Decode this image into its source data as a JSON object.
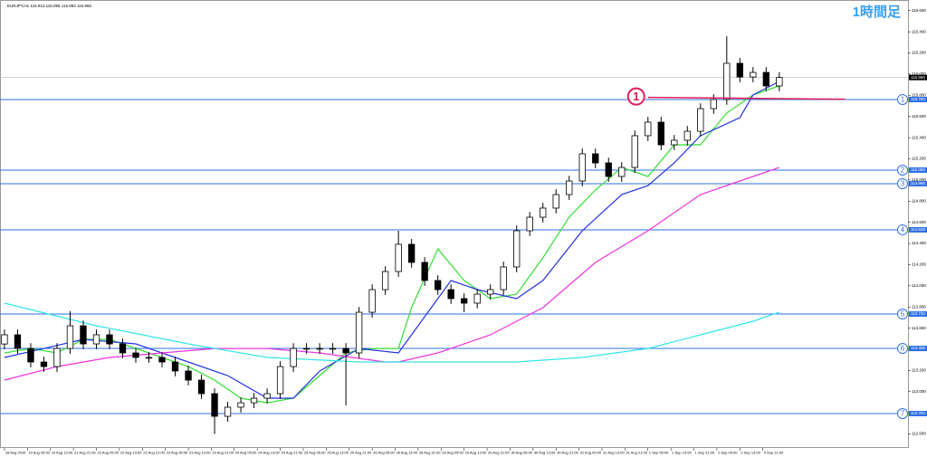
{
  "chart_data": {
    "type": "candlestick",
    "title": "EURJPY,H1 115.913 116.095 115.863 115.968",
    "timeframe_label": "1時間足",
    "xlim": [
      -0.34,
      68.8
    ],
    "ylim": [
      112.468,
      116.666
    ],
    "yticks": [
      {
        "value": 112.6,
        "label": "112.600"
      },
      {
        "value": 112.8,
        "label": "112.800"
      },
      {
        "value": 113.0,
        "label": "113.000"
      },
      {
        "value": 113.2,
        "label": "113.200"
      },
      {
        "value": 113.4,
        "label": "113.400"
      },
      {
        "value": 113.6,
        "label": "113.600"
      },
      {
        "value": 113.8,
        "label": "113.800"
      },
      {
        "value": 114.0,
        "label": "114.000"
      },
      {
        "value": 114.2,
        "label": "114.200"
      },
      {
        "value": 114.4,
        "label": "114.400"
      },
      {
        "value": 114.6,
        "label": "114.600"
      },
      {
        "value": 114.8,
        "label": "114.800"
      },
      {
        "value": 115.0,
        "label": "115.000"
      },
      {
        "value": 115.2,
        "label": "115.200"
      },
      {
        "value": 115.4,
        "label": "115.400"
      },
      {
        "value": 115.6,
        "label": "115.600"
      },
      {
        "value": 115.8,
        "label": "115.800"
      },
      {
        "value": 116.0,
        "label": "116.000"
      },
      {
        "value": 116.2,
        "label": "116.200"
      },
      {
        "value": 116.4,
        "label": "116.400"
      },
      {
        "value": 116.6,
        "label": "116.600"
      }
    ],
    "xticks": [
      {
        "value": 0,
        "label": "18 Aug 2016"
      },
      {
        "value": 1.75,
        "label": "19 Aug 05:00"
      },
      {
        "value": 3.5,
        "label": "19 Aug 13:00"
      },
      {
        "value": 5.25,
        "label": "21 Aug 21:00"
      },
      {
        "value": 7,
        "label": "22 Aug 05:00"
      },
      {
        "value": 8.75,
        "label": "22 Aug 13:00"
      },
      {
        "value": 10.5,
        "label": "22 Aug 21:00"
      },
      {
        "value": 12.25,
        "label": "23 Aug 05:00"
      },
      {
        "value": 14,
        "label": "23 Aug 13:00"
      },
      {
        "value": 15.75,
        "label": "23 Aug 21:00"
      },
      {
        "value": 17.5,
        "label": "24 Aug 05:00"
      },
      {
        "value": 19.25,
        "label": "24 Aug 13:00"
      },
      {
        "value": 21,
        "label": "24 Aug 21:00"
      },
      {
        "value": 22.75,
        "label": "25 Aug 05:00"
      },
      {
        "value": 24.5,
        "label": "25 Aug 13:00"
      },
      {
        "value": 26.25,
        "label": "25 Aug 21:00"
      },
      {
        "value": 28,
        "label": "26 Aug 05:00"
      },
      {
        "value": 29.75,
        "label": "26 Aug 13:00"
      },
      {
        "value": 31.5,
        "label": "26 Aug 21:00"
      },
      {
        "value": 33.25,
        "label": "29 Aug 05:00"
      },
      {
        "value": 35,
        "label": "29 Aug 13:00"
      },
      {
        "value": 36.75,
        "label": "29 Aug 21:00"
      },
      {
        "value": 38.5,
        "label": "30 Aug 05:00"
      },
      {
        "value": 40.25,
        "label": "30 Aug 13:00"
      },
      {
        "value": 42,
        "label": "30 Aug 21:00"
      },
      {
        "value": 43.75,
        "label": "31 Aug 05:00"
      },
      {
        "value": 45.5,
        "label": "31 Aug 13:00"
      },
      {
        "value": 47.25,
        "label": "31 Aug 21:00"
      },
      {
        "value": 49,
        "label": "1 Sep 05:00"
      },
      {
        "value": 50.75,
        "label": "1 Sep 13:00"
      },
      {
        "value": 52.5,
        "label": "1 Sep 21:00"
      },
      {
        "value": 54.25,
        "label": "2 Sep 05:00"
      },
      {
        "value": 56,
        "label": "2 Sep 13:00"
      },
      {
        "value": 57.75,
        "label": "4 Sep 21:00"
      }
    ],
    "x": [
      0,
      1,
      2,
      3,
      4,
      5,
      6,
      7,
      8,
      9,
      10,
      11,
      12,
      13,
      14,
      15,
      16,
      17,
      18,
      19,
      20,
      21,
      22,
      23,
      24,
      25,
      26,
      27,
      28,
      29,
      30,
      31,
      32,
      33,
      34,
      35,
      36,
      37,
      38,
      39,
      40,
      41,
      42,
      43,
      44,
      45,
      46,
      47,
      48,
      49,
      50,
      51,
      52,
      53,
      54,
      55,
      56,
      57,
      58,
      59
    ],
    "open": [
      113.45,
      113.537,
      113.408,
      113.28,
      113.237,
      113.408,
      113.622,
      113.451,
      113.537,
      113.451,
      113.366,
      113.323,
      113.323,
      113.28,
      113.195,
      113.109,
      112.981,
      112.767,
      112.853,
      112.895,
      112.938,
      112.981,
      113.237,
      113.408,
      113.408,
      113.408,
      113.408,
      113.366,
      113.75,
      113.964,
      114.135,
      114.392,
      114.221,
      114.05,
      113.964,
      113.879,
      113.836,
      113.921,
      113.964,
      114.178,
      114.52,
      114.648,
      114.734,
      114.862,
      114.99,
      115.247,
      115.161,
      115.033,
      115.118,
      115.418,
      115.546,
      115.332,
      115.375,
      115.46,
      115.674,
      115.76,
      116.102,
      115.973,
      116.016,
      115.888
    ],
    "high": [
      113.587,
      113.587,
      113.458,
      113.33,
      113.458,
      113.76,
      113.672,
      113.587,
      113.587,
      113.501,
      113.416,
      113.373,
      113.373,
      113.33,
      113.245,
      113.159,
      113.031,
      112.903,
      112.945,
      112.988,
      113.031,
      113.287,
      113.458,
      113.458,
      113.458,
      113.458,
      113.458,
      113.8,
      114.014,
      114.185,
      114.52,
      114.442,
      114.271,
      114.1,
      114.014,
      113.929,
      113.971,
      114.014,
      114.228,
      114.57,
      114.698,
      114.784,
      114.912,
      115.04,
      115.297,
      115.297,
      115.211,
      115.168,
      115.468,
      115.596,
      115.596,
      115.425,
      115.51,
      115.724,
      115.81,
      116.358,
      116.152,
      116.066,
      116.066,
      116.018
    ],
    "low": [
      113.4,
      113.358,
      113.23,
      113.187,
      113.187,
      113.358,
      113.401,
      113.401,
      113.401,
      113.316,
      113.273,
      113.273,
      113.23,
      113.145,
      113.059,
      112.931,
      112.6,
      112.717,
      112.803,
      112.845,
      112.888,
      112.931,
      113.187,
      113.358,
      113.358,
      113.358,
      112.87,
      113.316,
      113.7,
      113.914,
      114.085,
      114.171,
      114.0,
      113.914,
      113.829,
      113.75,
      113.786,
      113.871,
      113.914,
      114.128,
      114.47,
      114.598,
      114.684,
      114.812,
      114.94,
      115.111,
      114.983,
      114.983,
      115.068,
      115.368,
      115.282,
      115.282,
      115.325,
      115.41,
      115.624,
      115.71,
      115.923,
      115.923,
      115.838,
      115.838
    ],
    "close": [
      113.537,
      113.408,
      113.28,
      113.237,
      113.408,
      113.622,
      113.451,
      113.537,
      113.451,
      113.366,
      113.323,
      113.323,
      113.28,
      113.195,
      113.109,
      112.981,
      112.767,
      112.853,
      112.895,
      112.938,
      112.981,
      113.237,
      113.408,
      113.408,
      113.408,
      113.408,
      113.366,
      113.75,
      113.964,
      114.135,
      114.392,
      114.221,
      114.05,
      113.964,
      113.879,
      113.836,
      113.921,
      113.964,
      114.178,
      114.52,
      114.648,
      114.734,
      114.862,
      114.99,
      115.247,
      115.161,
      115.033,
      115.118,
      115.418,
      115.546,
      115.332,
      115.375,
      115.46,
      115.674,
      115.76,
      116.102,
      115.973,
      116.016,
      115.888,
      115.968
    ],
    "up_color": "#ffffff",
    "down_color": "#000000",
    "lines": [
      {
        "color": "#33dd33",
        "x": [
          0,
          2,
          4,
          6,
          8,
          10,
          12,
          14,
          16,
          18,
          20,
          22,
          24,
          26,
          28,
          30,
          31,
          33,
          35,
          37,
          39,
          41,
          43,
          45,
          47,
          49,
          51,
          53,
          55,
          57,
          59
        ],
        "values": [
          113.366,
          113.408,
          113.366,
          113.494,
          113.494,
          113.408,
          113.323,
          113.237,
          113.109,
          112.938,
          112.895,
          112.938,
          113.152,
          113.366,
          113.408,
          113.408,
          113.793,
          114.349,
          114.05,
          113.879,
          113.921,
          114.264,
          114.648,
          114.905,
          115.118,
          115.033,
          115.332,
          115.332,
          115.632,
          115.803,
          115.888
        ]
      },
      {
        "color": "#2233dd",
        "x": [
          0,
          3,
          6,
          10,
          13,
          17,
          20,
          22,
          24,
          27,
          30,
          32,
          34,
          36,
          39,
          41,
          44,
          47,
          49,
          51,
          53,
          56,
          57,
          59
        ],
        "values": [
          113.323,
          113.408,
          113.494,
          113.451,
          113.323,
          113.152,
          112.938,
          112.938,
          113.195,
          113.408,
          113.366,
          113.708,
          114.05,
          113.964,
          113.879,
          114.05,
          114.52,
          114.862,
          114.947,
          115.161,
          115.418,
          115.589,
          115.803,
          115.931
        ]
      },
      {
        "color": "#ee33dd",
        "x": [
          0,
          4,
          8,
          12,
          16,
          20,
          24,
          29,
          30,
          33,
          37,
          41,
          45,
          49,
          53,
          57,
          59
        ],
        "values": [
          113.109,
          113.237,
          113.323,
          113.366,
          113.408,
          113.408,
          113.366,
          113.28,
          113.28,
          113.366,
          113.537,
          113.793,
          114.221,
          114.52,
          114.862,
          115.033,
          115.118
        ]
      },
      {
        "color": "#33e5e5",
        "x": [
          0,
          7,
          14,
          20,
          27,
          30,
          34,
          39,
          44,
          49,
          53,
          57,
          59
        ],
        "values": [
          113.836,
          113.622,
          113.451,
          113.323,
          113.28,
          113.28,
          113.28,
          113.28,
          113.323,
          113.408,
          113.537,
          113.665,
          113.75
        ]
      }
    ],
    "levels": [
      {
        "value": 115.76,
        "label": "115.760",
        "tag": "1"
      },
      {
        "value": 115.093,
        "label": "115.093",
        "tag": "2"
      },
      {
        "value": 114.965,
        "label": "114.965",
        "tag": "3"
      },
      {
        "value": 114.529,
        "label": "114.529",
        "tag": "4"
      },
      {
        "value": 113.733,
        "label": "113.733",
        "tag": "5"
      },
      {
        "value": 113.408,
        "label": "113.408",
        "tag": "6"
      },
      {
        "value": 112.793,
        "label": "112.793",
        "tag": "7"
      }
    ],
    "level_color": "#2f6fe4",
    "current_price": {
      "value": 115.968,
      "label": "115.968"
    },
    "annotation": {
      "label": "1",
      "value": 115.78,
      "x": [
        49,
        64
      ],
      "color": "#e0205a"
    }
  }
}
